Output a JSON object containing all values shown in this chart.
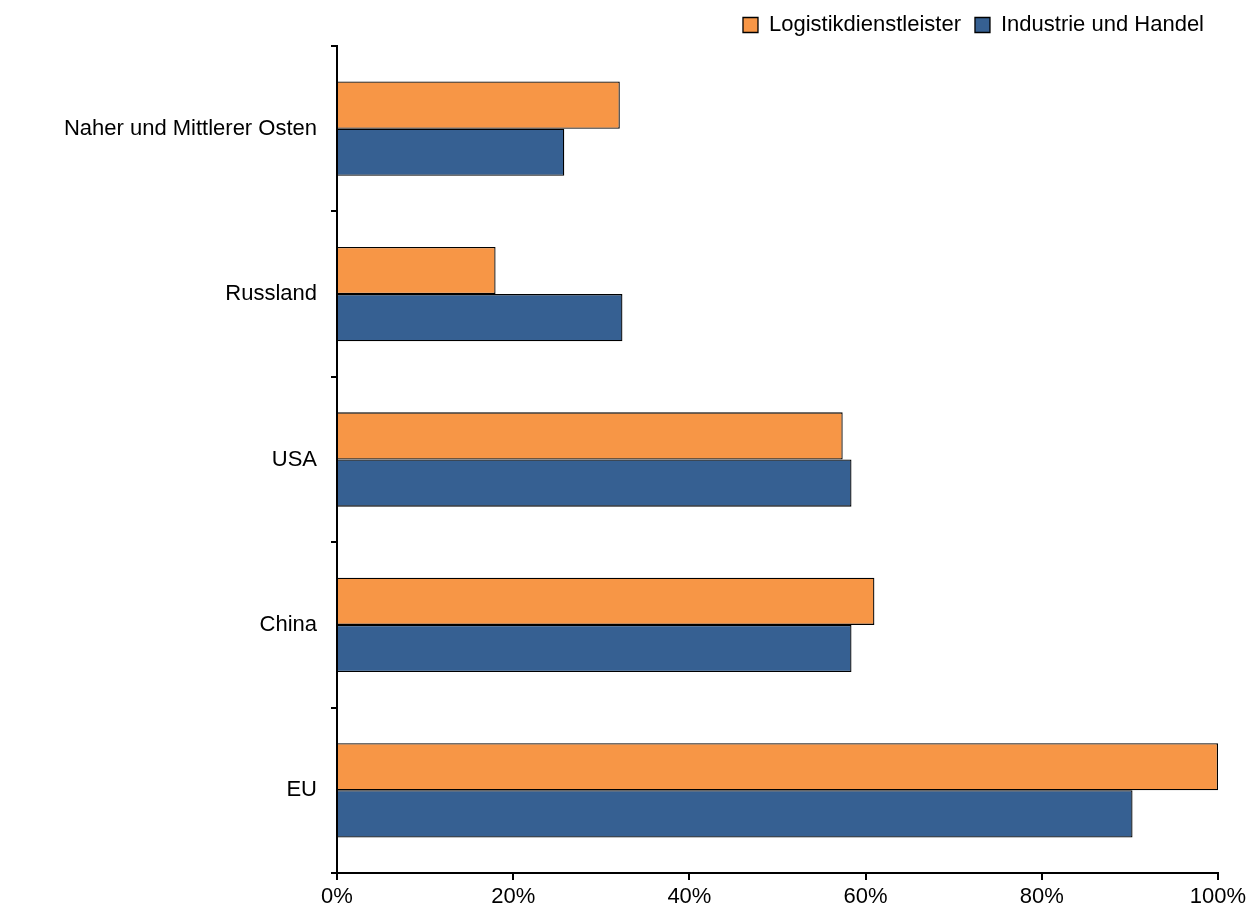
{
  "chart_data": {
    "type": "bar",
    "orientation": "horizontal",
    "categories": [
      "Naher und Mittlerer Osten",
      "Russland",
      "USA",
      "China",
      "EU"
    ],
    "series": [
      {
        "name": "Logistikdienstleister",
        "color": "#f79646",
        "values": [
          32.1,
          18.0,
          57.4,
          61.0,
          100
        ]
      },
      {
        "name": "Industrie und Handel",
        "color": "#366092",
        "values": [
          25.8,
          32.4,
          58.4,
          58.4,
          90.3
        ]
      }
    ],
    "xlim": [
      0,
      100
    ],
    "xticks": [
      {
        "value": 0,
        "label": "0%"
      },
      {
        "value": 20,
        "label": "20%"
      },
      {
        "value": 40,
        "label": "40%"
      },
      {
        "value": 60,
        "label": "60%"
      },
      {
        "value": 80,
        "label": "80%"
      },
      {
        "value": 100,
        "label": "100%"
      }
    ],
    "grid": false,
    "legend": "top right"
  }
}
